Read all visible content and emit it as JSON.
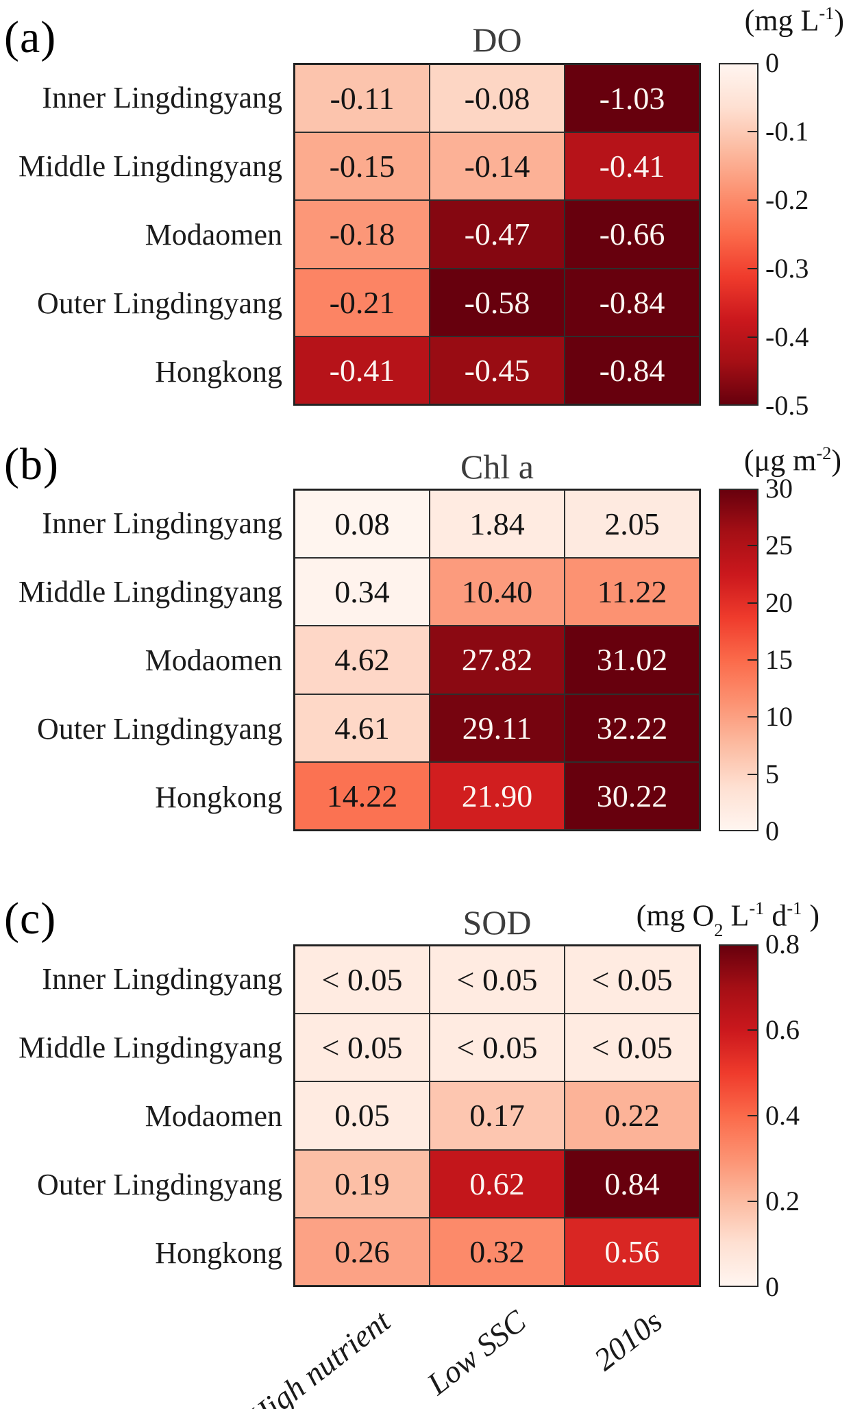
{
  "figure": {
    "row_labels": [
      "Inner Lingdingyang",
      "Middle Lingdingyang",
      "Modaomen",
      "Outer Lingdingyang",
      "Hongkong"
    ],
    "column_labels": [
      "High nutrient",
      "Low SSC",
      "2010s"
    ]
  },
  "colors": {
    "colormap_reds": [
      [
        255,
        245,
        240
      ],
      [
        254,
        224,
        210
      ],
      [
        252,
        187,
        161
      ],
      [
        252,
        146,
        114
      ],
      [
        251,
        106,
        74
      ],
      [
        239,
        59,
        44
      ],
      [
        203,
        24,
        29
      ],
      [
        165,
        15,
        21
      ],
      [
        103,
        0,
        13
      ]
    ],
    "cell_text_dark": "#141414",
    "cell_text_light": "#fcf6f2",
    "grid_border": "#2e2e2e",
    "title_color": "#3d3d3d"
  },
  "chart_data": [
    {
      "type": "heatmap",
      "panel": "a",
      "letter": "(a)",
      "title": "DO",
      "unit_text": "(mg L-1)",
      "unit_segments": [
        {
          "t": "(mg L"
        },
        {
          "t": "-1",
          "sup": true
        },
        {
          "t": ")"
        }
      ],
      "rows": [
        "Inner Lingdingyang",
        "Middle Lingdingyang",
        "Modaomen",
        "Outer Lingdingyang",
        "Hongkong"
      ],
      "columns": [
        "High nutrient",
        "Low SSC",
        "2010s"
      ],
      "cell_labels": [
        [
          "-0.11",
          "-0.08",
          "-1.03"
        ],
        [
          "-0.15",
          "-0.14",
          "-0.41"
        ],
        [
          "-0.18",
          "-0.47",
          "-0.66"
        ],
        [
          "-0.21",
          "-0.58",
          "-0.84"
        ],
        [
          "-0.41",
          "-0.45",
          "-0.84"
        ]
      ],
      "values": [
        [
          -0.11,
          -0.08,
          -1.03
        ],
        [
          -0.15,
          -0.14,
          -0.41
        ],
        [
          -0.18,
          -0.47,
          -0.66
        ],
        [
          -0.21,
          -0.58,
          -0.84
        ],
        [
          -0.41,
          -0.45,
          -0.84
        ]
      ],
      "scale": {
        "vmin": 0,
        "vmax": -0.5
      },
      "colorbar": {
        "ticks": [
          "0",
          "-0.1",
          "-0.2",
          "-0.3",
          "-0.4",
          "-0.5"
        ],
        "dark_at_top": false
      }
    },
    {
      "type": "heatmap",
      "panel": "b",
      "letter": "(b)",
      "title": "Chl a",
      "unit_text": "(μg m-2)",
      "unit_segments": [
        {
          "t": "(μg m"
        },
        {
          "t": "-2",
          "sup": true
        },
        {
          "t": ")"
        }
      ],
      "rows": [
        "Inner Lingdingyang",
        "Middle Lingdingyang",
        "Modaomen",
        "Outer Lingdingyang",
        "Hongkong"
      ],
      "columns": [
        "High nutrient",
        "Low SSC",
        "2010s"
      ],
      "cell_labels": [
        [
          "0.08",
          "1.84",
          "2.05"
        ],
        [
          "0.34",
          "10.40",
          "11.22"
        ],
        [
          "4.62",
          "27.82",
          "31.02"
        ],
        [
          "4.61",
          "29.11",
          "32.22"
        ],
        [
          "14.22",
          "21.90",
          "30.22"
        ]
      ],
      "values": [
        [
          0.08,
          1.84,
          2.05
        ],
        [
          0.34,
          10.4,
          11.22
        ],
        [
          4.62,
          27.82,
          31.02
        ],
        [
          4.61,
          29.11,
          32.22
        ],
        [
          14.22,
          21.9,
          30.22
        ]
      ],
      "scale": {
        "vmin": 0,
        "vmax": 30
      },
      "colorbar": {
        "ticks": [
          "30",
          "25",
          "20",
          "15",
          "10",
          "5",
          "0"
        ],
        "dark_at_top": true
      }
    },
    {
      "type": "heatmap",
      "panel": "c",
      "letter": "(c)",
      "title": "SOD",
      "unit_text": "(mg O2 L-1 d-1 )",
      "unit_segments": [
        {
          "t": "(mg O"
        },
        {
          "t": "2",
          "sub": true
        },
        {
          "t": " L"
        },
        {
          "t": "-1",
          "sup": true
        },
        {
          "t": " d"
        },
        {
          "t": "-1",
          "sup": true
        },
        {
          "t": " )"
        }
      ],
      "rows": [
        "Inner Lingdingyang",
        "Middle Lingdingyang",
        "Modaomen",
        "Outer Lingdingyang",
        "Hongkong"
      ],
      "columns": [
        "High nutrient",
        "Low SSC",
        "2010s"
      ],
      "cell_labels": [
        [
          "< 0.05",
          "< 0.05",
          "< 0.05"
        ],
        [
          "< 0.05",
          "< 0.05",
          "< 0.05"
        ],
        [
          "0.05",
          "0.17",
          "0.22"
        ],
        [
          "0.19",
          "0.62",
          "0.84"
        ],
        [
          "0.26",
          "0.32",
          "0.56"
        ]
      ],
      "values": [
        [
          0.05,
          0.05,
          0.05
        ],
        [
          0.05,
          0.05,
          0.05
        ],
        [
          0.05,
          0.17,
          0.22
        ],
        [
          0.19,
          0.62,
          0.84
        ],
        [
          0.26,
          0.32,
          0.56
        ]
      ],
      "scale": {
        "vmin": 0,
        "vmax": 0.8
      },
      "colorbar": {
        "ticks": [
          "0.8",
          "0.6",
          "0.4",
          "0.2",
          "0"
        ],
        "dark_at_top": true
      }
    }
  ]
}
